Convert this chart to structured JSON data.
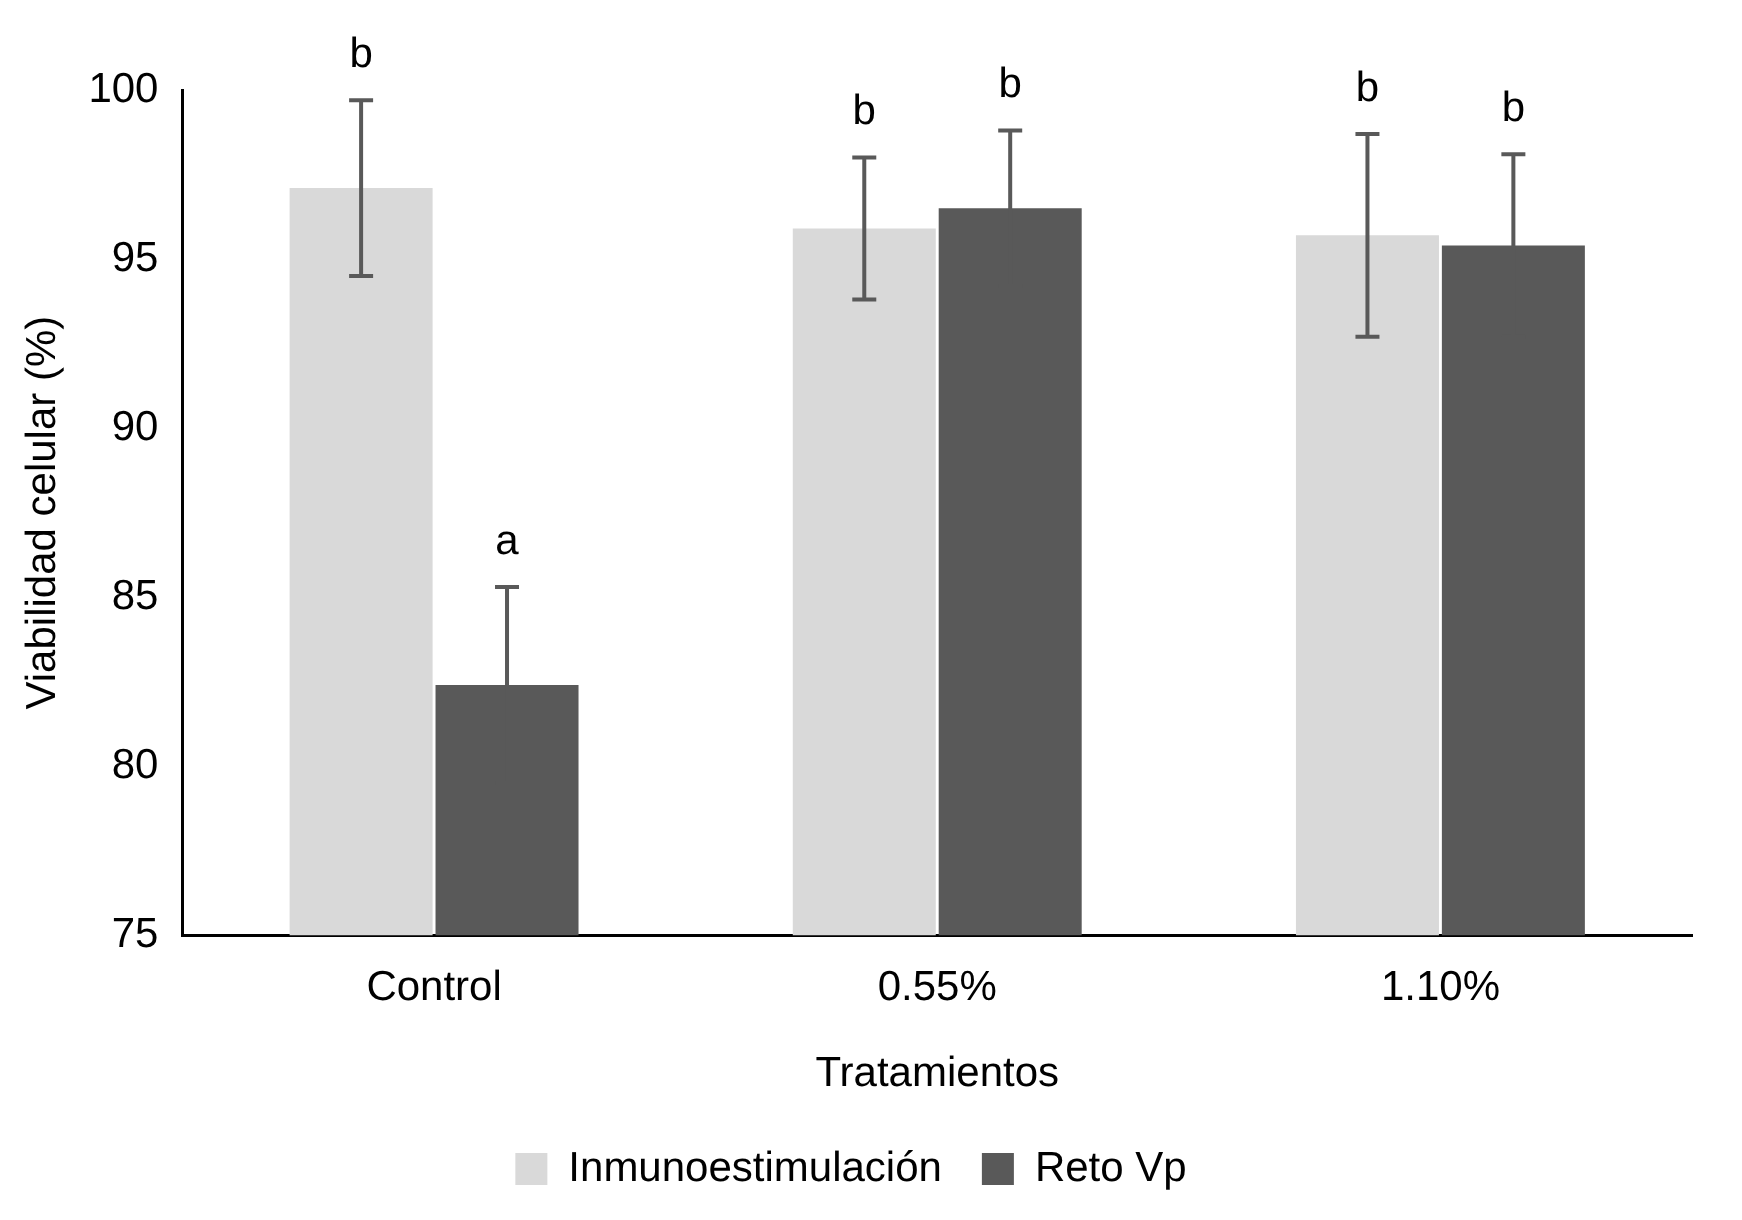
{
  "chart_data": {
    "type": "bar",
    "xlabel": "Tratamientos",
    "ylabel": "Viabilidad celular (%)",
    "categories": [
      "Control",
      "0.55%",
      "1.10%"
    ],
    "series": [
      {
        "name": "Inmunoestimulación",
        "color": "#d9d9d9",
        "values": [
          97.1,
          95.9,
          95.7
        ],
        "errors": [
          2.6,
          2.1,
          3.0
        ]
      },
      {
        "name": "Reto Vp",
        "color": "#595959",
        "values": [
          82.4,
          96.5,
          95.4
        ],
        "errors": [
          2.9,
          2.3,
          2.7
        ]
      }
    ],
    "ylim": [
      75,
      100
    ],
    "yticks": [
      75,
      80,
      85,
      90,
      95,
      100
    ],
    "grid": false,
    "legend": "bottom",
    "annotations": [
      "b",
      "a",
      "b",
      "b",
      "b",
      "b"
    ]
  }
}
